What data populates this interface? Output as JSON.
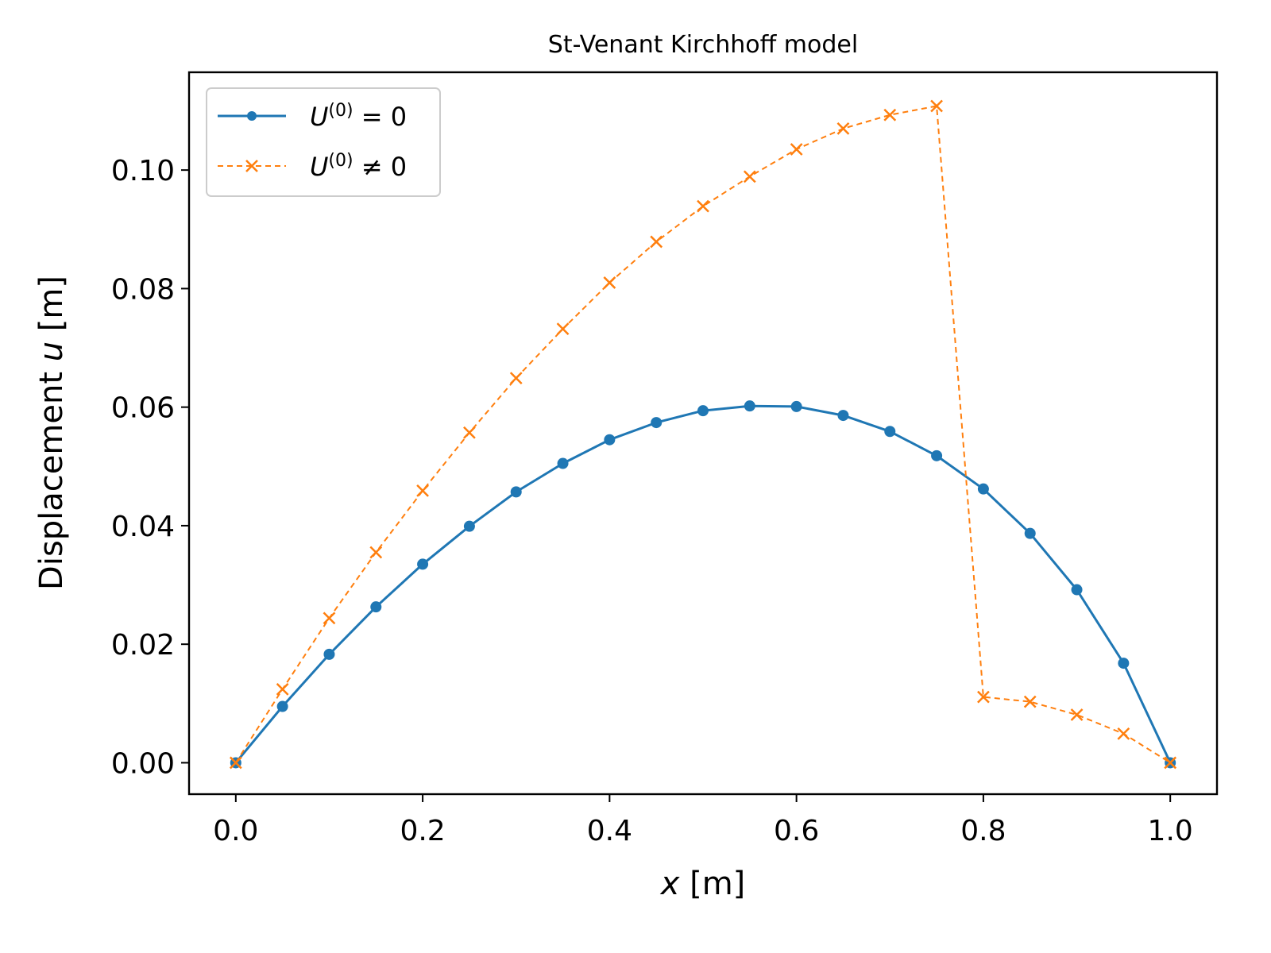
{
  "chart_data": {
    "type": "line",
    "title": "St-Venant Kirchhoff model",
    "xlabel_var": "x",
    "xlabel_unit": " [m]",
    "ylabel_prefix": "Displacement ",
    "ylabel_var": "u",
    "ylabel_unit": " [m]",
    "xlim": [
      -0.05,
      1.05
    ],
    "ylim": [
      -0.0053,
      0.1165
    ],
    "xticks": [
      0.0,
      0.2,
      0.4,
      0.6,
      0.8,
      1.0
    ],
    "xtick_labels": [
      "0.0",
      "0.2",
      "0.4",
      "0.6",
      "0.8",
      "1.0"
    ],
    "yticks": [
      0.0,
      0.02,
      0.04,
      0.06,
      0.08,
      0.1
    ],
    "ytick_labels": [
      "0.00",
      "0.02",
      "0.04",
      "0.06",
      "0.08",
      "0.10"
    ],
    "grid": false,
    "legend_position": "upper-left",
    "x": [
      0.0,
      0.05,
      0.1,
      0.15,
      0.2,
      0.25,
      0.3,
      0.35,
      0.4,
      0.45,
      0.5,
      0.55,
      0.6,
      0.65,
      0.7,
      0.75,
      0.8,
      0.85,
      0.9,
      0.95,
      1.0
    ],
    "series": [
      {
        "name": "U^(0) = 0",
        "legend_main": "U",
        "legend_sup": "(0)",
        "legend_rest": " = 0",
        "color": "#1f77b4",
        "style": "solid",
        "marker": "circle",
        "values": [
          0.0,
          0.0095,
          0.0183,
          0.0263,
          0.0335,
          0.0399,
          0.0457,
          0.0505,
          0.0545,
          0.0574,
          0.0594,
          0.0602,
          0.0601,
          0.0586,
          0.0559,
          0.0518,
          0.0462,
          0.0387,
          0.0292,
          0.0168,
          0.0
        ]
      },
      {
        "name": "U^(0) ≠ 0",
        "legend_main": "U",
        "legend_sup": "(0)",
        "legend_rest": " ≠ 0",
        "color": "#ff7f0e",
        "style": "dashed",
        "marker": "x",
        "values": [
          0.0,
          0.0124,
          0.0244,
          0.0355,
          0.0459,
          0.0557,
          0.0649,
          0.0732,
          0.081,
          0.0879,
          0.0939,
          0.0989,
          0.1035,
          0.107,
          0.1093,
          0.1108,
          0.0111,
          0.0103,
          0.0081,
          0.0049,
          0.0
        ]
      }
    ]
  }
}
